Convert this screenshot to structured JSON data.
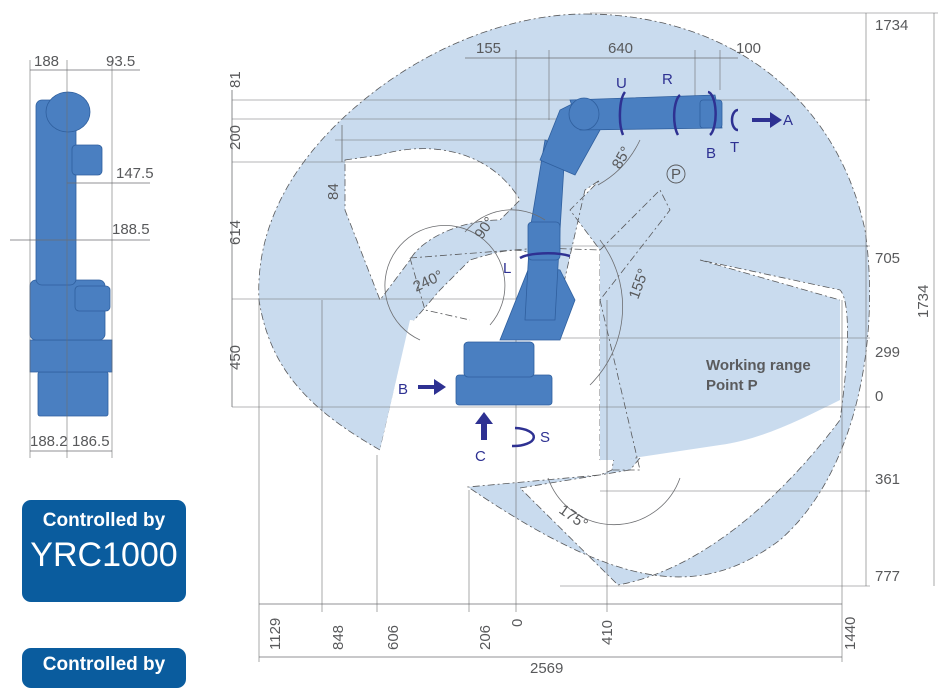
{
  "dims_side": {
    "top_left": "188",
    "top_right": "93.5",
    "mid_a": "147.5",
    "mid_b": "188.5",
    "bot_left": "188.2",
    "bot_right": "186.5"
  },
  "dims_top": {
    "a": "155",
    "b": "640",
    "c": "100"
  },
  "dims_left_vertical": {
    "a": "81",
    "b": "200",
    "c": "84",
    "d": "614",
    "e": "450"
  },
  "dims_right": {
    "a": "1734",
    "b": "705",
    "c": "299",
    "d": "0",
    "e": "361",
    "f": "777",
    "g": "1734"
  },
  "dims_bottom": {
    "a": "1129",
    "b": "848",
    "c": "606",
    "d": "206",
    "e": "0",
    "f": "410",
    "g": "1440",
    "total": "2569"
  },
  "angles": {
    "a": "85°",
    "b": "90°",
    "c": "240°",
    "d": "155°",
    "e": "175°"
  },
  "axis_labels": {
    "U": "U",
    "R": "R",
    "B": "B",
    "T": "T",
    "A": "A",
    "L": "L",
    "S": "S",
    "C": "C",
    "B2": "B",
    "P": "P"
  },
  "working_range": {
    "line1": "Working range",
    "line2": "Point P"
  },
  "badges": {
    "line1": "Controlled by",
    "controller": "YRC1000",
    "line2": "Controlled by"
  },
  "colors": {
    "range_fill": "#c9dbee",
    "robot": "#4a7fc1",
    "badge": "#0a5c9e",
    "axis": "#2e3192"
  }
}
